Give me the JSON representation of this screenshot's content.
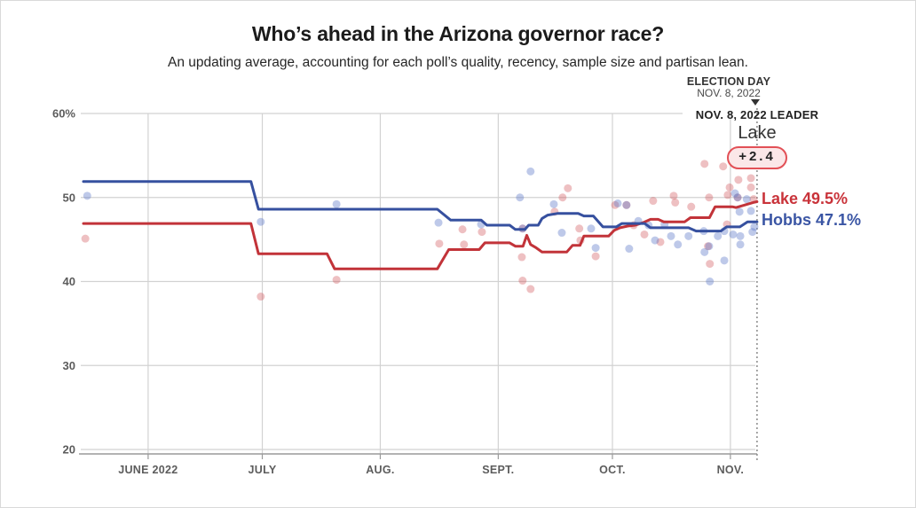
{
  "header": {
    "title": "Who’s ahead in the Arizona governor race?",
    "subtitle": "An updating average, accounting for each poll’s quality, recency, sample size and partisan lean."
  },
  "annotations": {
    "election_day_label": "ELECTION DAY",
    "election_day_date": "NOV. 8, 2022",
    "leader_heading": "NOV. 8, 2022 LEADER",
    "leader_name": "Lake",
    "leader_margin": "+2.4",
    "lake_line_label": "Lake 49.5%",
    "hobbs_line_label": "Hobbs 47.1%"
  },
  "colors": {
    "lake_line": "#c23339",
    "hobbs_line": "#36509f",
    "lake_dot": "#cf4a50",
    "hobbs_dot": "#5d77c8",
    "grid": "#d2d2d2",
    "axis": "#9a9a9a",
    "dashed_line": "#8a8a8a",
    "tick_text": "#5c5c5c"
  },
  "chart_data": {
    "type": "line",
    "title": "Who’s ahead in the Arizona governor race?",
    "ylabel": "",
    "xlabel": "",
    "ylim": [
      20,
      60
    ],
    "x_domain_days": [
      0,
      177
    ],
    "election_day": 177,
    "grid": true,
    "y_ticks": [
      {
        "value": 60,
        "label": "60%"
      },
      {
        "value": 50,
        "label": "50"
      },
      {
        "value": 40,
        "label": "40"
      },
      {
        "value": 30,
        "label": "30"
      },
      {
        "value": 20,
        "label": "20"
      }
    ],
    "x_ticks": [
      {
        "day": 17,
        "label": "JUNE 2022"
      },
      {
        "day": 47,
        "label": "JULY"
      },
      {
        "day": 78,
        "label": "AUG."
      },
      {
        "day": 109,
        "label": "SEPT."
      },
      {
        "day": 139,
        "label": "OCT."
      },
      {
        "day": 170,
        "label": "NOV."
      }
    ],
    "series": [
      {
        "name": "Lake",
        "final_value": 49.5,
        "points": [
          [
            0,
            46.9
          ],
          [
            44,
            46.9
          ],
          [
            46,
            43.3
          ],
          [
            64,
            43.3
          ],
          [
            66,
            41.5
          ],
          [
            93,
            41.5
          ],
          [
            96,
            43.8
          ],
          [
            104,
            43.8
          ],
          [
            105.5,
            44.6
          ],
          [
            112,
            44.6
          ],
          [
            113.5,
            44.2
          ],
          [
            115.5,
            44.2
          ],
          [
            116.5,
            45.5
          ],
          [
            117.5,
            44.4
          ],
          [
            119,
            44.0
          ],
          [
            120.5,
            43.5
          ],
          [
            127,
            43.5
          ],
          [
            128.5,
            44.3
          ],
          [
            130.5,
            44.3
          ],
          [
            131.5,
            45.4
          ],
          [
            138,
            45.4
          ],
          [
            139.5,
            46.1
          ],
          [
            141,
            46.4
          ],
          [
            143,
            46.6
          ],
          [
            145,
            46.7
          ],
          [
            147,
            47.0
          ],
          [
            149,
            47.4
          ],
          [
            151,
            47.4
          ],
          [
            152.5,
            47.1
          ],
          [
            158,
            47.1
          ],
          [
            159.5,
            47.6
          ],
          [
            164.5,
            47.6
          ],
          [
            166,
            48.9
          ],
          [
            170.5,
            48.9
          ],
          [
            171.5,
            48.8
          ],
          [
            173,
            49.0
          ],
          [
            174.5,
            49.2
          ],
          [
            176,
            49.4
          ],
          [
            177,
            49.5
          ]
        ]
      },
      {
        "name": "Hobbs",
        "final_value": 47.1,
        "points": [
          [
            0,
            51.9
          ],
          [
            44,
            51.9
          ],
          [
            46,
            48.6
          ],
          [
            93,
            48.6
          ],
          [
            96.5,
            47.3
          ],
          [
            104.5,
            47.3
          ],
          [
            106,
            46.7
          ],
          [
            112,
            46.7
          ],
          [
            113.5,
            46.2
          ],
          [
            116,
            46.2
          ],
          [
            117,
            46.7
          ],
          [
            119.5,
            46.7
          ],
          [
            120.5,
            47.5
          ],
          [
            122,
            47.9
          ],
          [
            124.5,
            48.1
          ],
          [
            130,
            48.1
          ],
          [
            131.5,
            47.8
          ],
          [
            134,
            47.8
          ],
          [
            136.5,
            46.5
          ],
          [
            140,
            46.5
          ],
          [
            141.5,
            46.9
          ],
          [
            147.5,
            46.9
          ],
          [
            149,
            46.4
          ],
          [
            159,
            46.4
          ],
          [
            161,
            46.0
          ],
          [
            167.5,
            46.0
          ],
          [
            169,
            46.5
          ],
          [
            172.5,
            46.5
          ],
          [
            174.5,
            47.1
          ],
          [
            177,
            47.1
          ]
        ]
      }
    ],
    "polls": [
      {
        "name": "Lake",
        "points": [
          [
            0.5,
            45.1
          ],
          [
            46.6,
            38.2
          ],
          [
            66.5,
            40.2
          ],
          [
            93.5,
            44.5
          ],
          [
            99.6,
            46.2
          ],
          [
            100,
            44.4
          ],
          [
            104.7,
            45.9
          ],
          [
            115.2,
            42.9
          ],
          [
            115.4,
            46.3
          ],
          [
            115.4,
            40.1
          ],
          [
            117.5,
            39.1
          ],
          [
            123.8,
            48.3
          ],
          [
            125.9,
            50.0
          ],
          [
            127.3,
            51.1
          ],
          [
            130.3,
            46.3
          ],
          [
            130.6,
            44.9
          ],
          [
            134.6,
            43.0
          ],
          [
            139.7,
            49.1
          ],
          [
            142.7,
            49.1
          ],
          [
            144.6,
            46.7
          ],
          [
            147.4,
            45.6
          ],
          [
            149.7,
            49.6
          ],
          [
            151.6,
            44.7
          ],
          [
            155.1,
            50.2
          ],
          [
            155.5,
            49.4
          ],
          [
            159.7,
            48.9
          ],
          [
            163.2,
            54.0
          ],
          [
            164.1,
            44.2
          ],
          [
            164.6,
            42.1
          ],
          [
            164.4,
            50.0
          ],
          [
            168.1,
            53.7
          ],
          [
            169.1,
            46.8
          ],
          [
            169.3,
            50.3
          ],
          [
            169.8,
            51.2
          ],
          [
            171.9,
            50.0
          ],
          [
            172.1,
            52.1
          ],
          [
            175.4,
            52.3
          ],
          [
            175.4,
            51.2
          ],
          [
            176.1,
            49.8
          ]
        ]
      },
      {
        "name": "Hobbs",
        "points": [
          [
            1,
            50.2
          ],
          [
            46.6,
            47.1
          ],
          [
            66.5,
            49.2
          ],
          [
            93.3,
            47.0
          ],
          [
            104.5,
            46.8
          ],
          [
            114.7,
            50.0
          ],
          [
            115.4,
            46.3
          ],
          [
            117.5,
            53.1
          ],
          [
            123.6,
            49.2
          ],
          [
            125.7,
            45.8
          ],
          [
            133.4,
            46.3
          ],
          [
            134.6,
            44.0
          ],
          [
            140.4,
            49.3
          ],
          [
            142.7,
            49.1
          ],
          [
            143.4,
            43.9
          ],
          [
            145.8,
            47.2
          ],
          [
            148.5,
            46.7
          ],
          [
            150.2,
            44.9
          ],
          [
            152.7,
            46.8
          ],
          [
            154.4,
            45.4
          ],
          [
            156.2,
            44.4
          ],
          [
            159,
            45.4
          ],
          [
            163,
            46.0
          ],
          [
            163.2,
            43.5
          ],
          [
            164.4,
            44.2
          ],
          [
            164.6,
            40.0
          ],
          [
            166.7,
            45.4
          ],
          [
            168.4,
            46.0
          ],
          [
            168.4,
            42.5
          ],
          [
            170.7,
            45.6
          ],
          [
            171.2,
            50.5
          ],
          [
            171.9,
            50.0
          ],
          [
            172.4,
            48.3
          ],
          [
            172.6,
            45.4
          ],
          [
            172.6,
            44.4
          ],
          [
            174.3,
            49.8
          ],
          [
            175.4,
            48.4
          ],
          [
            175.8,
            45.9
          ],
          [
            176.3,
            46.5
          ]
        ]
      }
    ]
  }
}
